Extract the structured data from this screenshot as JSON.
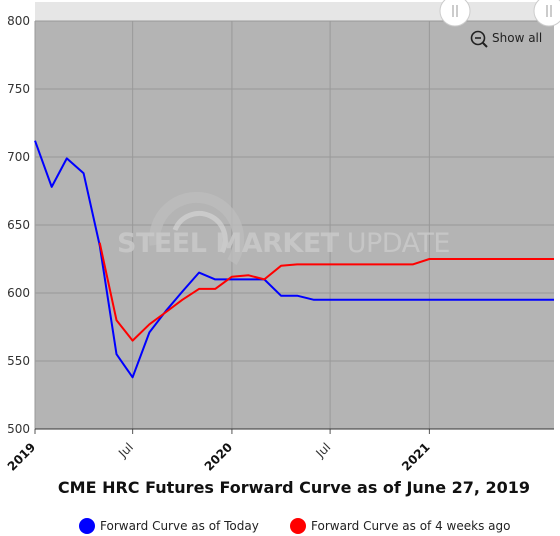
{
  "chart_data": {
    "type": "line",
    "title": "CME HRC Futures Forward Curve as of June 27, 2019",
    "ylim": [
      500,
      800
    ],
    "yticks": [
      500,
      550,
      600,
      650,
      700,
      750,
      800
    ],
    "xlim": [
      "2019-01-01",
      "2021-08-20"
    ],
    "xticks": [
      {
        "date": "2019-01-01",
        "label": "2019",
        "major": true
      },
      {
        "date": "2019-07-01",
        "label": "Jul",
        "major": false
      },
      {
        "date": "2020-01-01",
        "label": "2020",
        "major": true
      },
      {
        "date": "2020-07-01",
        "label": "Jul",
        "major": false
      },
      {
        "date": "2021-01-01",
        "label": "2021",
        "major": true
      }
    ],
    "grid": true,
    "legend_position": "bottom",
    "watermark": {
      "bold": "STEEL MARKET",
      "light": "UPDATE"
    },
    "series": [
      {
        "name": "Forward Curve as of Today",
        "color": "#0000ff",
        "points": [
          [
            "2019-01-01",
            712
          ],
          [
            "2019-02-01",
            678
          ],
          [
            "2019-03-01",
            699
          ],
          [
            "2019-04-01",
            688
          ],
          [
            "2019-05-01",
            635
          ],
          [
            "2019-06-01",
            555
          ],
          [
            "2019-07-01",
            538
          ],
          [
            "2019-08-01",
            571
          ],
          [
            "2019-09-01",
            587
          ],
          [
            "2019-10-01",
            601
          ],
          [
            "2019-11-01",
            615
          ],
          [
            "2019-12-01",
            610
          ],
          [
            "2020-01-01",
            610
          ],
          [
            "2020-02-01",
            610
          ],
          [
            "2020-03-01",
            610
          ],
          [
            "2020-04-01",
            598
          ],
          [
            "2020-05-01",
            598
          ],
          [
            "2020-06-01",
            595
          ],
          [
            "2020-07-01",
            595
          ],
          [
            "2020-08-01",
            595
          ],
          [
            "2020-09-01",
            595
          ],
          [
            "2020-10-01",
            595
          ],
          [
            "2020-11-01",
            595
          ],
          [
            "2020-12-01",
            595
          ],
          [
            "2021-01-01",
            595
          ],
          [
            "2021-02-01",
            595
          ],
          [
            "2021-03-01",
            595
          ],
          [
            "2021-04-01",
            595
          ],
          [
            "2021-05-01",
            595
          ],
          [
            "2021-06-01",
            595
          ],
          [
            "2021-07-01",
            595
          ],
          [
            "2021-08-01",
            595
          ],
          [
            "2021-08-20",
            595
          ]
        ]
      },
      {
        "name": "Forward Curve as of 4 weeks ago",
        "color": "#ff0000",
        "points": [
          [
            "2019-05-01",
            637
          ],
          [
            "2019-06-01",
            580
          ],
          [
            "2019-07-01",
            565
          ],
          [
            "2019-08-01",
            577
          ],
          [
            "2019-09-01",
            586
          ],
          [
            "2019-10-01",
            595
          ],
          [
            "2019-11-01",
            603
          ],
          [
            "2019-12-01",
            603
          ],
          [
            "2020-01-01",
            612
          ],
          [
            "2020-02-01",
            613
          ],
          [
            "2020-03-01",
            610
          ],
          [
            "2020-04-01",
            620
          ],
          [
            "2020-05-01",
            621
          ],
          [
            "2020-06-01",
            621
          ],
          [
            "2020-07-01",
            621
          ],
          [
            "2020-08-01",
            621
          ],
          [
            "2020-09-01",
            621
          ],
          [
            "2020-10-01",
            621
          ],
          [
            "2020-11-01",
            621
          ],
          [
            "2020-12-01",
            621
          ],
          [
            "2021-01-01",
            625
          ],
          [
            "2021-02-01",
            625
          ],
          [
            "2021-03-01",
            625
          ],
          [
            "2021-04-01",
            625
          ],
          [
            "2021-05-01",
            625
          ],
          [
            "2021-06-01",
            625
          ],
          [
            "2021-07-01",
            625
          ],
          [
            "2021-08-01",
            625
          ],
          [
            "2021-08-20",
            625
          ]
        ]
      }
    ]
  },
  "controls": {
    "show_all_label": "Show all",
    "zoom_icon": "zoom-out-icon",
    "handle_icon": "range-handle-icon"
  },
  "colors": {
    "plot_background": "#b4b4b4",
    "navigator_background": "#e6e6e6",
    "grid": "#999999"
  }
}
